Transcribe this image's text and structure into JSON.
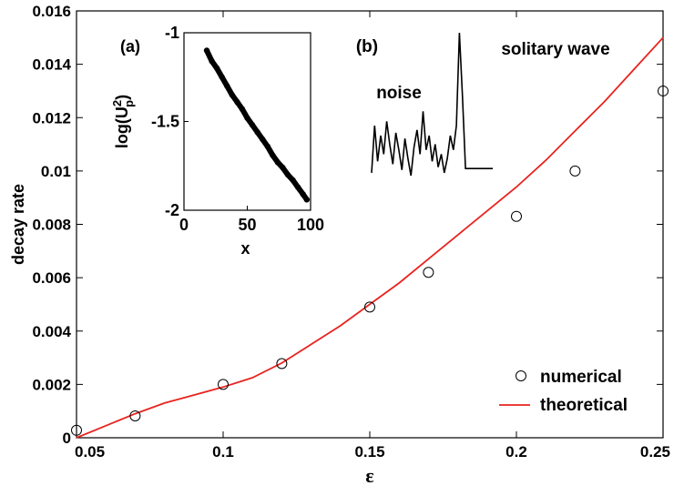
{
  "chart_data": [
    {
      "type": "scatter",
      "title": "",
      "xlabel": "ε",
      "ylabel": "decay rate",
      "xlim": [
        0.05,
        0.25
      ],
      "ylim": [
        0,
        0.016
      ],
      "xticks": [
        "0.05",
        "0.1",
        "0.15",
        "0.2",
        "0.25"
      ],
      "yticks": [
        "0",
        "0.002",
        "0.004",
        "0.006",
        "0.008",
        "0.01",
        "0.012",
        "0.014",
        "0.016"
      ],
      "legend_position": "bottom-right",
      "series": [
        {
          "name": "numerical",
          "marker": "open-circle",
          "x": [
            0.05,
            0.07,
            0.1,
            0.12,
            0.15,
            0.17,
            0.2,
            0.22,
            0.25
          ],
          "y": [
            0.00028,
            0.00082,
            0.002,
            0.00278,
            0.0049,
            0.0062,
            0.0083,
            0.01,
            0.013
          ]
        },
        {
          "name": "theoretical",
          "type": "line",
          "color": "#e8231f",
          "x": [
            0.05,
            0.06,
            0.07,
            0.08,
            0.09,
            0.1,
            0.11,
            0.12,
            0.13,
            0.14,
            0.15,
            0.16,
            0.17,
            0.18,
            0.19,
            0.2,
            0.21,
            0.22,
            0.23,
            0.24,
            0.25
          ],
          "y": [
            0.0,
            0.00045,
            0.0009,
            0.0013,
            0.0016,
            0.0019,
            0.00225,
            0.0028,
            0.0035,
            0.0042,
            0.005,
            0.0058,
            0.0067,
            0.0076,
            0.0085,
            0.0094,
            0.0104,
            0.0115,
            0.0126,
            0.0138,
            0.015
          ]
        }
      ]
    },
    {
      "type": "scatter",
      "panel": "(a)",
      "xlabel": "x",
      "ylabel": "log(U",
      "ylabel_sup": "2",
      "ylabel_sub": "p",
      "ylabel_close": ")",
      "xlim": [
        0,
        100
      ],
      "ylim": [
        -2,
        -1
      ],
      "xticks": [
        "0",
        "50",
        "100"
      ],
      "yticks": [
        "-2",
        "-1.5",
        "-1"
      ],
      "series": [
        {
          "x": [
            18,
            22,
            26,
            30,
            34,
            38,
            42,
            46,
            50,
            54,
            58,
            62,
            66,
            70,
            74,
            78,
            82,
            86,
            90,
            94,
            97
          ],
          "y": [
            -1.1,
            -1.16,
            -1.2,
            -1.25,
            -1.3,
            -1.35,
            -1.39,
            -1.43,
            -1.48,
            -1.52,
            -1.56,
            -1.6,
            -1.64,
            -1.69,
            -1.73,
            -1.76,
            -1.8,
            -1.83,
            -1.87,
            -1.91,
            -1.94
          ]
        }
      ]
    },
    {
      "type": "line",
      "panel": "(b)",
      "annotations": [
        "noise",
        "solitary wave"
      ],
      "series": [
        {
          "x": [
            0,
            1,
            2,
            3,
            4,
            5,
            6,
            7,
            8,
            9,
            10,
            11,
            12,
            13,
            14,
            15,
            16,
            17,
            18,
            19,
            20,
            21,
            22,
            23,
            24,
            25,
            26,
            27,
            28,
            29,
            30,
            31,
            32,
            33,
            34,
            35,
            36,
            37,
            38,
            39,
            40
          ],
          "y": [
            0.02,
            0.35,
            0.1,
            0.28,
            0.15,
            0.38,
            0.22,
            0.08,
            0.3,
            0.18,
            0.04,
            0.26,
            0.12,
            0.0,
            0.2,
            0.32,
            0.15,
            0.45,
            0.18,
            0.28,
            0.1,
            0.22,
            0.06,
            0.15,
            0.02,
            0.12,
            0.28,
            0.18,
            0.35,
            1.0,
            0.55,
            0.05,
            0.05,
            0.05,
            0.05,
            0.05,
            0.05,
            0.05,
            0.05,
            0.05,
            0.05
          ]
        }
      ]
    }
  ]
}
